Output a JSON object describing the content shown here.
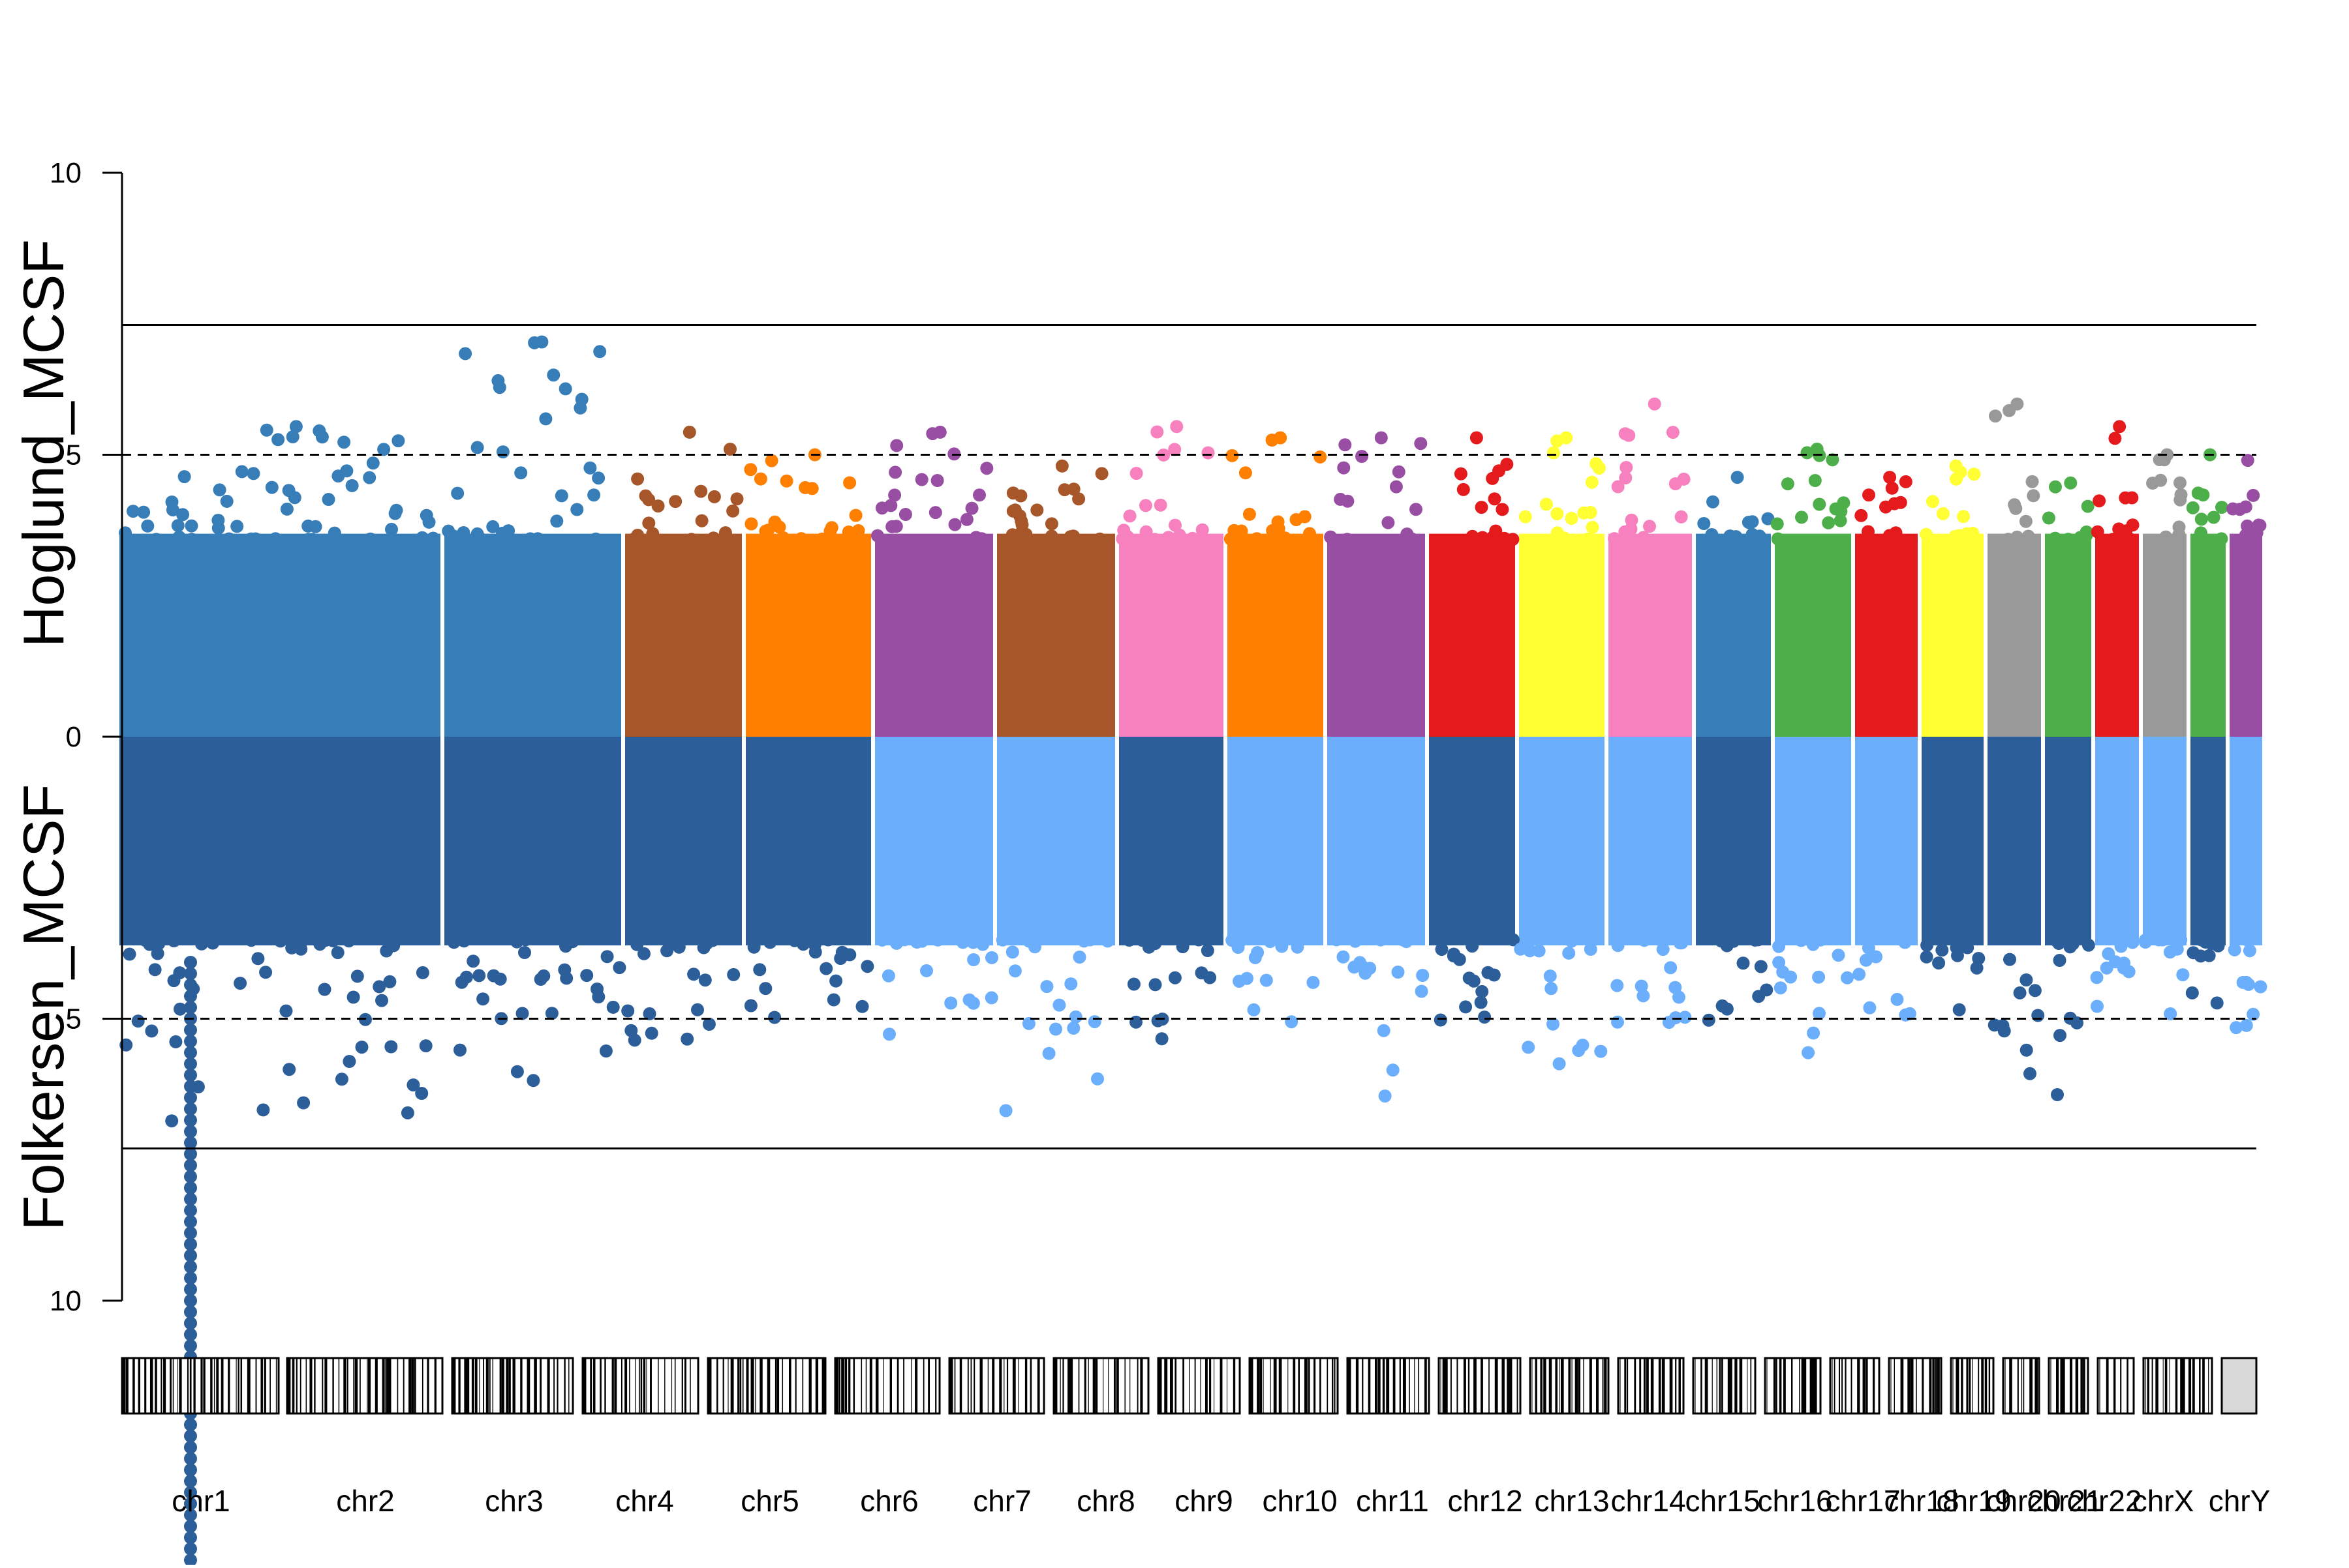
{
  "chart_data": {
    "type": "scatter",
    "subtype": "miami-plot",
    "title": "",
    "top_panel": {
      "ylabel": "Hoglund_MCSF",
      "ylim": [
        0,
        10
      ],
      "ticks": [
        "10",
        "5",
        "0"
      ],
      "tick_values": [
        10,
        5,
        0
      ],
      "suggestive_line": 5,
      "genomewide_line": 7.3,
      "colors": [
        "#377EB8",
        "#377EB8",
        "#A65628",
        "#FF7F00",
        "#984EA3",
        "#A65628",
        "#F781BF",
        "#FF7F00",
        "#984EA3",
        "#E41A1C",
        "#FFFF33",
        "#F781BF",
        "#377EB8",
        "#4DAF4A",
        "#E41A1C",
        "#FFFF33",
        "#999999",
        "#4DAF4A",
        "#E41A1C",
        "#999999",
        "#4DAF4A",
        "#984EA3"
      ],
      "peak_values": [
        5.5,
        7.0,
        5.4,
        5.0,
        5.4,
        4.8,
        5.5,
        5.3,
        5.3,
        5.3,
        5.3,
        5.9,
        4.6,
        5.1,
        4.6,
        4.8,
        5.9,
        4.5,
        5.5,
        5.0,
        5.0,
        4.9
      ]
    },
    "bottom_panel": {
      "ylabel": "Folkersen_MCSF",
      "ylim": [
        0,
        10
      ],
      "ticks": [
        "0",
        "5",
        "10"
      ],
      "tick_values": [
        0,
        5,
        10
      ],
      "suggestive_line": 5,
      "genomewide_line": 7.3,
      "colors": [
        "#2C5E9A",
        "#2C5E9A",
        "#2C5E9A",
        "#2C5E9A",
        "#6BAEFC",
        "#6BAEFC",
        "#2C5E9A",
        "#6BAEFC",
        "#6BAEFC",
        "#2C5E9A",
        "#6BAEFC",
        "#6BAEFC",
        "#2C5E9A",
        "#6BAEFC",
        "#6BAEFC",
        "#2C5E9A",
        "#2C5E9A",
        "#2C5E9A",
        "#6BAEFC",
        "#6BAEFC",
        "#2C5E9A",
        "#6BAEFC"
      ],
      "peak_values": [
        15.0,
        6.2,
        5.7,
        5.3,
        5.5,
        6.7,
        5.6,
        6.5,
        6.4,
        5.1,
        6.1,
        5.3,
        5.5,
        6.0,
        5.0,
        5.9,
        6.1,
        6.5,
        5.0,
        5.1,
        4.9,
        5.4
      ]
    },
    "chromosomes": [
      "chr1",
      "chr2",
      "chr3",
      "chr4",
      "chr5",
      "chr6",
      "chr7",
      "chr8",
      "chr9",
      "chr10",
      "chr11",
      "chr12",
      "chr13",
      "chr14",
      "chr15",
      "chr16",
      "chr17",
      "chr18",
      "chr19",
      "chr20",
      "chr21",
      "chr22",
      "chrX",
      "chrY"
    ],
    "grid": false,
    "legend": "none"
  }
}
